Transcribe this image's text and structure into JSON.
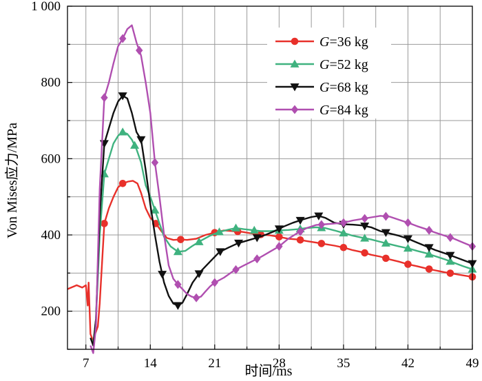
{
  "chart_data": {
    "type": "line",
    "title": "",
    "xlabel": "时间/ms",
    "ylabel": "Von Mises应力/MPa",
    "xlim": [
      5,
      49
    ],
    "ylim": [
      100,
      1000
    ],
    "xticks": [
      7,
      14,
      21,
      28,
      35,
      42,
      49
    ],
    "xtick_labels": [
      "7",
      "14",
      "21",
      "28",
      "35",
      "42",
      "49"
    ],
    "yticks": [
      200,
      400,
      600,
      800,
      1000
    ],
    "ytick_labels": [
      "200",
      "400",
      "600",
      "800",
      "1 000"
    ],
    "grid": true,
    "legend_position": "top-right",
    "series": [
      {
        "name": "G=36 kg",
        "legend_var": "G",
        "legend_rest": "=36 kg",
        "color": "#e8302a",
        "marker": "circle",
        "points": [
          [
            5,
            258
          ],
          [
            6,
            268
          ],
          [
            6.6,
            262
          ],
          [
            7,
            268
          ],
          [
            7.2,
            215
          ],
          [
            7.3,
            275
          ],
          [
            7.5,
            140
          ],
          [
            7.8,
            120
          ],
          [
            8.0,
            140
          ],
          [
            8.3,
            160
          ],
          [
            8.5,
            220
          ],
          [
            9,
            430
          ],
          [
            9.5,
            470
          ],
          [
            10,
            500
          ],
          [
            10.5,
            525
          ],
          [
            11,
            535
          ],
          [
            11.6,
            540
          ],
          [
            12.1,
            542
          ],
          [
            12.6,
            535
          ],
          [
            13,
            510
          ],
          [
            13.5,
            470
          ],
          [
            14,
            445
          ],
          [
            14.6,
            430
          ],
          [
            15.2,
            410
          ],
          [
            15.8,
            392
          ],
          [
            16.5,
            387
          ],
          [
            17.3,
            388
          ],
          [
            18,
            387
          ],
          [
            19,
            390
          ],
          [
            20,
            400
          ],
          [
            21,
            406
          ],
          [
            22,
            412
          ],
          [
            23,
            410
          ],
          [
            24,
            408
          ],
          [
            25,
            404
          ],
          [
            26,
            401
          ],
          [
            27,
            399
          ],
          [
            28,
            395
          ],
          [
            29,
            390
          ],
          [
            30,
            388
          ],
          [
            31,
            384
          ],
          [
            32,
            380
          ],
          [
            33,
            376
          ],
          [
            34,
            372
          ],
          [
            35,
            367
          ],
          [
            36,
            360
          ],
          [
            37,
            355
          ],
          [
            38,
            348
          ],
          [
            39,
            343
          ],
          [
            40,
            336
          ],
          [
            41,
            330
          ],
          [
            42,
            323
          ],
          [
            43,
            318
          ],
          [
            44,
            312
          ],
          [
            45,
            307
          ],
          [
            46,
            302
          ],
          [
            47,
            298
          ],
          [
            48,
            294
          ],
          [
            49,
            290
          ]
        ],
        "markers_x": [
          9,
          11,
          14.6,
          17.3,
          21,
          23.5,
          26,
          28,
          30.3,
          32.6,
          35,
          37.3,
          39.6,
          42,
          44.3,
          46.6,
          49
        ]
      },
      {
        "name": "G=52 kg",
        "legend_var": "G",
        "legend_rest": "=52 kg",
        "color": "#3fb27f",
        "marker": "triangle-up",
        "points": [
          [
            7.5,
            130
          ],
          [
            7.8,
            115
          ],
          [
            8.1,
            180
          ],
          [
            8.5,
            400
          ],
          [
            9,
            560
          ],
          [
            9.5,
            600
          ],
          [
            10,
            640
          ],
          [
            10.5,
            660
          ],
          [
            11,
            670
          ],
          [
            11.5,
            665
          ],
          [
            12,
            650
          ],
          [
            12.5,
            625
          ],
          [
            13,
            590
          ],
          [
            13.5,
            530
          ],
          [
            14,
            500
          ],
          [
            14.5,
            465
          ],
          [
            15,
            430
          ],
          [
            15.5,
            395
          ],
          [
            16.2,
            370
          ],
          [
            17,
            356
          ],
          [
            17.8,
            358
          ],
          [
            18.5,
            370
          ],
          [
            19.5,
            385
          ],
          [
            20.5,
            398
          ],
          [
            21.5,
            408
          ],
          [
            22.5,
            414
          ],
          [
            23.3,
            418
          ],
          [
            24.2,
            415
          ],
          [
            25,
            413
          ],
          [
            26,
            410
          ],
          [
            27,
            410
          ],
          [
            28,
            412
          ],
          [
            29,
            413
          ],
          [
            30,
            415
          ],
          [
            31,
            418
          ],
          [
            32,
            420
          ],
          [
            33,
            418
          ],
          [
            34,
            412
          ],
          [
            35,
            405
          ],
          [
            36,
            398
          ],
          [
            37,
            393
          ],
          [
            38,
            388
          ],
          [
            39,
            382
          ],
          [
            40,
            376
          ],
          [
            41,
            370
          ],
          [
            42,
            365
          ],
          [
            43,
            358
          ],
          [
            44,
            352
          ],
          [
            45,
            344
          ],
          [
            46,
            336
          ],
          [
            47,
            327
          ],
          [
            48,
            318
          ],
          [
            49,
            310
          ]
        ],
        "markers_x": [
          9,
          11,
          12.3,
          14.5,
          17,
          19.3,
          21.5,
          23.3,
          25.3,
          28,
          30.3,
          32.6,
          35,
          37.3,
          39.6,
          42,
          44.3,
          46.6,
          49
        ]
      },
      {
        "name": "G=68 kg",
        "legend_var": "G",
        "legend_rest": "=68 kg",
        "color": "#111111",
        "marker": "triangle-down",
        "points": [
          [
            7.5,
            130
          ],
          [
            7.8,
            110
          ],
          [
            8.1,
            180
          ],
          [
            8.5,
            450
          ],
          [
            9,
            640
          ],
          [
            9.5,
            680
          ],
          [
            10,
            720
          ],
          [
            10.5,
            750
          ],
          [
            11,
            765
          ],
          [
            11.5,
            758
          ],
          [
            12,
            720
          ],
          [
            12.5,
            670
          ],
          [
            13,
            650
          ],
          [
            13.5,
            570
          ],
          [
            14,
            480
          ],
          [
            14.5,
            400
          ],
          [
            15,
            330
          ],
          [
            15.5,
            275
          ],
          [
            16,
            240
          ],
          [
            16.5,
            220
          ],
          [
            17,
            215
          ],
          [
            17.5,
            222
          ],
          [
            18,
            245
          ],
          [
            18.6,
            275
          ],
          [
            19.5,
            305
          ],
          [
            20.5,
            330
          ],
          [
            21.5,
            355
          ],
          [
            22.5,
            367
          ],
          [
            23.5,
            378
          ],
          [
            24.5,
            385
          ],
          [
            25.5,
            392
          ],
          [
            26.5,
            400
          ],
          [
            27.5,
            410
          ],
          [
            28.5,
            422
          ],
          [
            29.5,
            432
          ],
          [
            30.5,
            440
          ],
          [
            31.5,
            447
          ],
          [
            32.3,
            450
          ],
          [
            33,
            445
          ],
          [
            34,
            432
          ],
          [
            35,
            428
          ],
          [
            36,
            427
          ],
          [
            37,
            425
          ],
          [
            38,
            420
          ],
          [
            39,
            410
          ],
          [
            40,
            404
          ],
          [
            41,
            398
          ],
          [
            42,
            390
          ],
          [
            43,
            380
          ],
          [
            44,
            370
          ],
          [
            45,
            360
          ],
          [
            46,
            352
          ],
          [
            47,
            343
          ],
          [
            48,
            334
          ],
          [
            49,
            325
          ]
        ],
        "markers_x": [
          9,
          11,
          13,
          15.3,
          17,
          19.3,
          21.6,
          23.6,
          25.6,
          28,
          30.3,
          32.3,
          35,
          37.3,
          39.6,
          42,
          44.3,
          46.6,
          49
        ]
      },
      {
        "name": "G=84 kg",
        "legend_var": "G",
        "legend_rest": "=84 kg",
        "color": "#b04fb0",
        "marker": "diamond",
        "points": [
          [
            7.5,
            110
          ],
          [
            7.8,
            90
          ],
          [
            8.1,
            160
          ],
          [
            8.5,
            520
          ],
          [
            9,
            760
          ],
          [
            9.5,
            800
          ],
          [
            10,
            850
          ],
          [
            10.5,
            895
          ],
          [
            11,
            915
          ],
          [
            11.5,
            940
          ],
          [
            12,
            950
          ],
          [
            12.5,
            905
          ],
          [
            13,
            870
          ],
          [
            13.5,
            800
          ],
          [
            14,
            720
          ],
          [
            14.5,
            590
          ],
          [
            15,
            500
          ],
          [
            15.5,
            400
          ],
          [
            16,
            320
          ],
          [
            16.5,
            285
          ],
          [
            17,
            270
          ],
          [
            17.5,
            258
          ],
          [
            18,
            245
          ],
          [
            18.5,
            238
          ],
          [
            19,
            235
          ],
          [
            19.5,
            238
          ],
          [
            20,
            252
          ],
          [
            20.5,
            265
          ],
          [
            21,
            275
          ],
          [
            22,
            288
          ],
          [
            23,
            305
          ],
          [
            24,
            318
          ],
          [
            25,
            330
          ],
          [
            26,
            342
          ],
          [
            27,
            356
          ],
          [
            28,
            370
          ],
          [
            29,
            390
          ],
          [
            30,
            405
          ],
          [
            31,
            418
          ],
          [
            32,
            426
          ],
          [
            33,
            428
          ],
          [
            34,
            430
          ],
          [
            35,
            432
          ],
          [
            36,
            438
          ],
          [
            37,
            442
          ],
          [
            38,
            446
          ],
          [
            39,
            450
          ],
          [
            40,
            448
          ],
          [
            41,
            440
          ],
          [
            42,
            432
          ],
          [
            43,
            423
          ],
          [
            44,
            415
          ],
          [
            45,
            406
          ],
          [
            46,
            398
          ],
          [
            47,
            390
          ],
          [
            48,
            380
          ],
          [
            49,
            370
          ]
        ],
        "markers_x": [
          9,
          11,
          12.8,
          14.5,
          17,
          19,
          21,
          23.3,
          25.6,
          28,
          30.3,
          32.6,
          35,
          37.3,
          39.6,
          42,
          44.3,
          46.6,
          49
        ]
      }
    ]
  }
}
